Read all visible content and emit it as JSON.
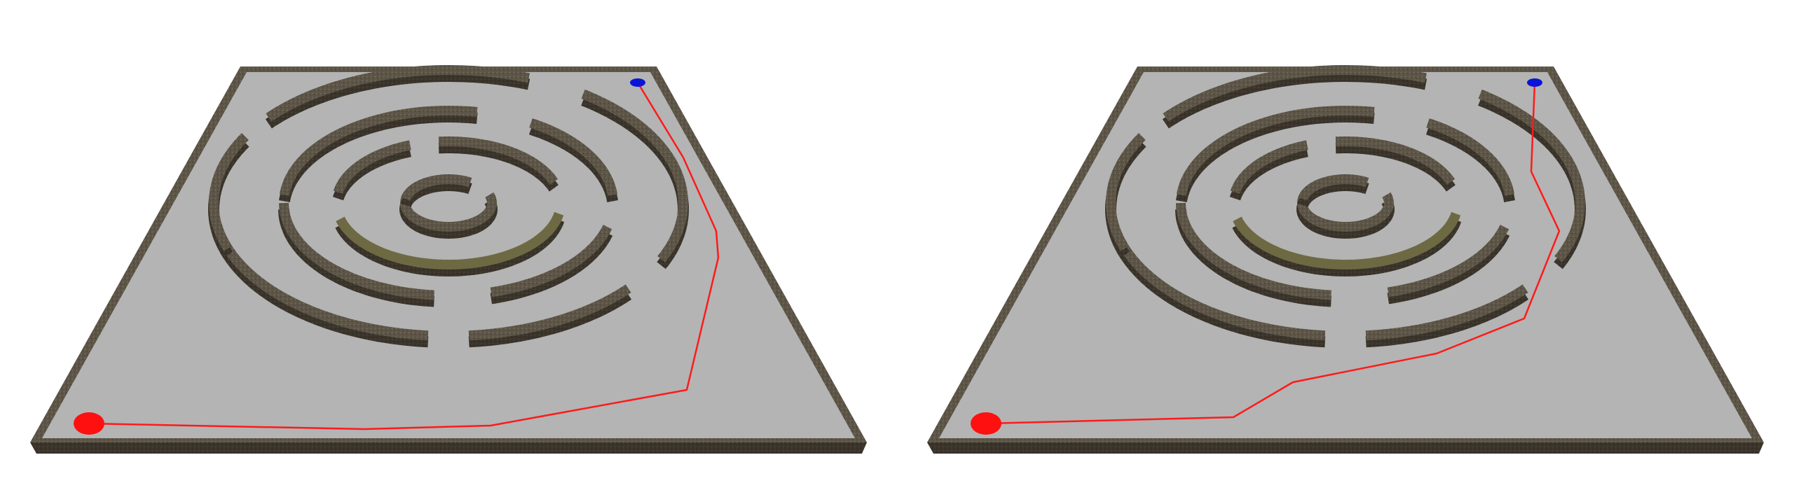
{
  "colors": {
    "background": "#ffffff",
    "floor": "#b4b4b4",
    "wall_top": "#5c5547",
    "wall_side": "#3a342b",
    "wall_highlight": "#6d6a43",
    "path": "#ff1a1a",
    "start_marker": "#ff1010",
    "goal_marker": "#0a14d8"
  },
  "panels": [
    {
      "name": "left-maze-panel",
      "path_label": "planned-path-a"
    },
    {
      "name": "right-maze-panel",
      "path_label": "planned-path-b"
    }
  ]
}
